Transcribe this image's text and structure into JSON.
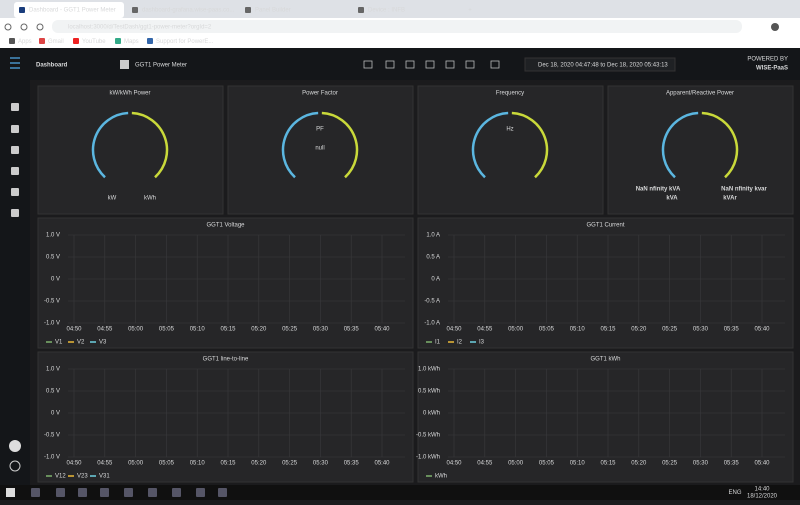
{
  "browser": {
    "tabs": [
      "Dashboard - GGT1 Power Meter",
      "dashboard-grafana.wise-paas.co...",
      "Panel Builder",
      "Device : INFB"
    ],
    "url": "localhost:3000/d/TestDash/ggt1-power-meter?orgId=2",
    "bookmarks": [
      "Apps",
      "Gmail",
      "YouTube",
      "Maps",
      "Support for PowerE..."
    ]
  },
  "header": {
    "logo": "Dashboard",
    "title": "GGT1 Power Meter",
    "time_range": "Dec 18, 2020 04:47:48 to Dec 18, 2020 05:43:13",
    "brand_top": "POWERED BY",
    "brand": "WISE-PaaS"
  },
  "gauges": [
    {
      "title": "kW/kWh Power",
      "labels": [
        "kW",
        "kWh"
      ]
    },
    {
      "title": "Power Factor",
      "labels": [
        "PF",
        "null"
      ]
    },
    {
      "title": "Frequency",
      "labels": [
        "Hz"
      ]
    },
    {
      "title": "Apparent/Reactive Power",
      "labels": [
        "NaN nfinity kVA",
        "NaN nfinity kvar",
        "kVA",
        "kVAr"
      ]
    }
  ],
  "graphs": [
    {
      "title": "GGT1 Voltage",
      "yticks": [
        "1.0 V",
        "0.5 V",
        "0 V",
        "-0.5 V",
        "-1.0 V"
      ],
      "legend": [
        "V1",
        "V2",
        "V3"
      ]
    },
    {
      "title": "GGT1 Current",
      "yticks": [
        "1.0 A",
        "0.5 A",
        "0 A",
        "-0.5 A",
        "-1.0 A"
      ],
      "legend": [
        "I1",
        "I2",
        "I3"
      ]
    },
    {
      "title": "GGT1 line-to-line",
      "yticks": [
        "1.0 V",
        "0.5 V",
        "0 V",
        "-0.5 V",
        "-1.0 V"
      ],
      "legend": [
        "V12",
        "V23",
        "V31"
      ]
    },
    {
      "title": "GGT1 kWh",
      "yticks": [
        "1.0 kWh",
        "0.5 kWh",
        "0 kWh",
        "-0.5 kWh",
        "-1.0 kWh"
      ],
      "legend": [
        "kWh"
      ]
    }
  ],
  "time_ticks": [
    "04:50",
    "04:55",
    "05:00",
    "05:05",
    "05:10",
    "05:15",
    "05:20",
    "05:25",
    "05:30",
    "05:35",
    "05:40"
  ],
  "taskbar": {
    "language": "ENG",
    "time": "14:40",
    "date": "18/12/2020"
  }
}
